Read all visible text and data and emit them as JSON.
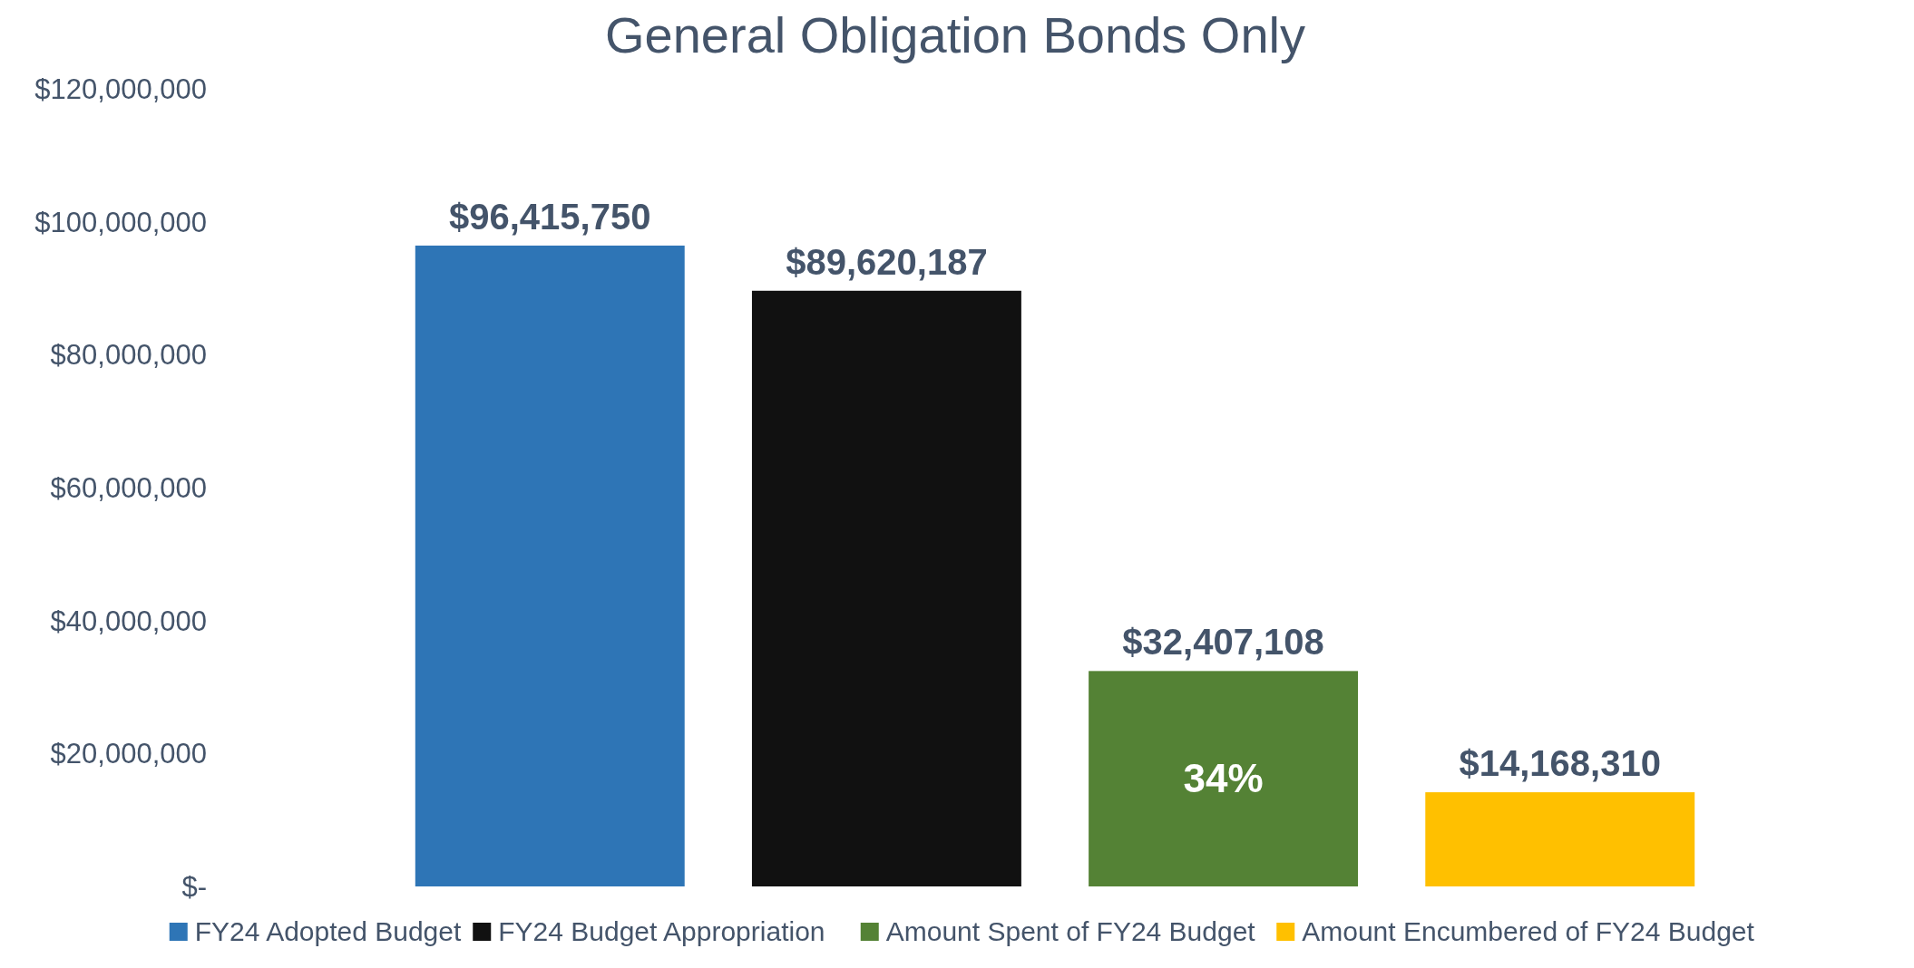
{
  "chart_data": {
    "type": "bar",
    "title": "General Obligation Bonds Only",
    "categories": [
      null
    ],
    "series": [
      {
        "name": "FY24 Adopted Budget",
        "color": "#2e75b6",
        "values": [
          96415750
        ]
      },
      {
        "name": "FY24 Budget Appropriation",
        "color": "#111111",
        "values": [
          89620187
        ]
      },
      {
        "name": "Amount Spent of FY24 Budget",
        "color": "#548235",
        "values": [
          32407108
        ]
      },
      {
        "name": "Amount Encumbered of FY24 Budget",
        "color": "#ffc000",
        "values": [
          14168310
        ]
      }
    ],
    "value_labels": [
      [
        "$96,415,750"
      ],
      [
        "$89,620,187"
      ],
      [
        "$32,407,108"
      ],
      [
        "$14,168,310"
      ]
    ],
    "annotations": [
      "34%"
    ],
    "ylim": [
      0,
      120000000
    ],
    "yticks": [
      {
        "value": 0,
        "label": "$-"
      },
      {
        "value": 20000000,
        "label": "$20,000,000"
      },
      {
        "value": 40000000,
        "label": "$40,000,000"
      },
      {
        "value": 60000000,
        "label": "$60,000,000"
      },
      {
        "value": 80000000,
        "label": "$80,000,000"
      },
      {
        "value": 100000000,
        "label": "$100,000,000"
      },
      {
        "value": 120000000,
        "label": "$120,000,000"
      }
    ],
    "grid": false,
    "legend": "bottom"
  }
}
